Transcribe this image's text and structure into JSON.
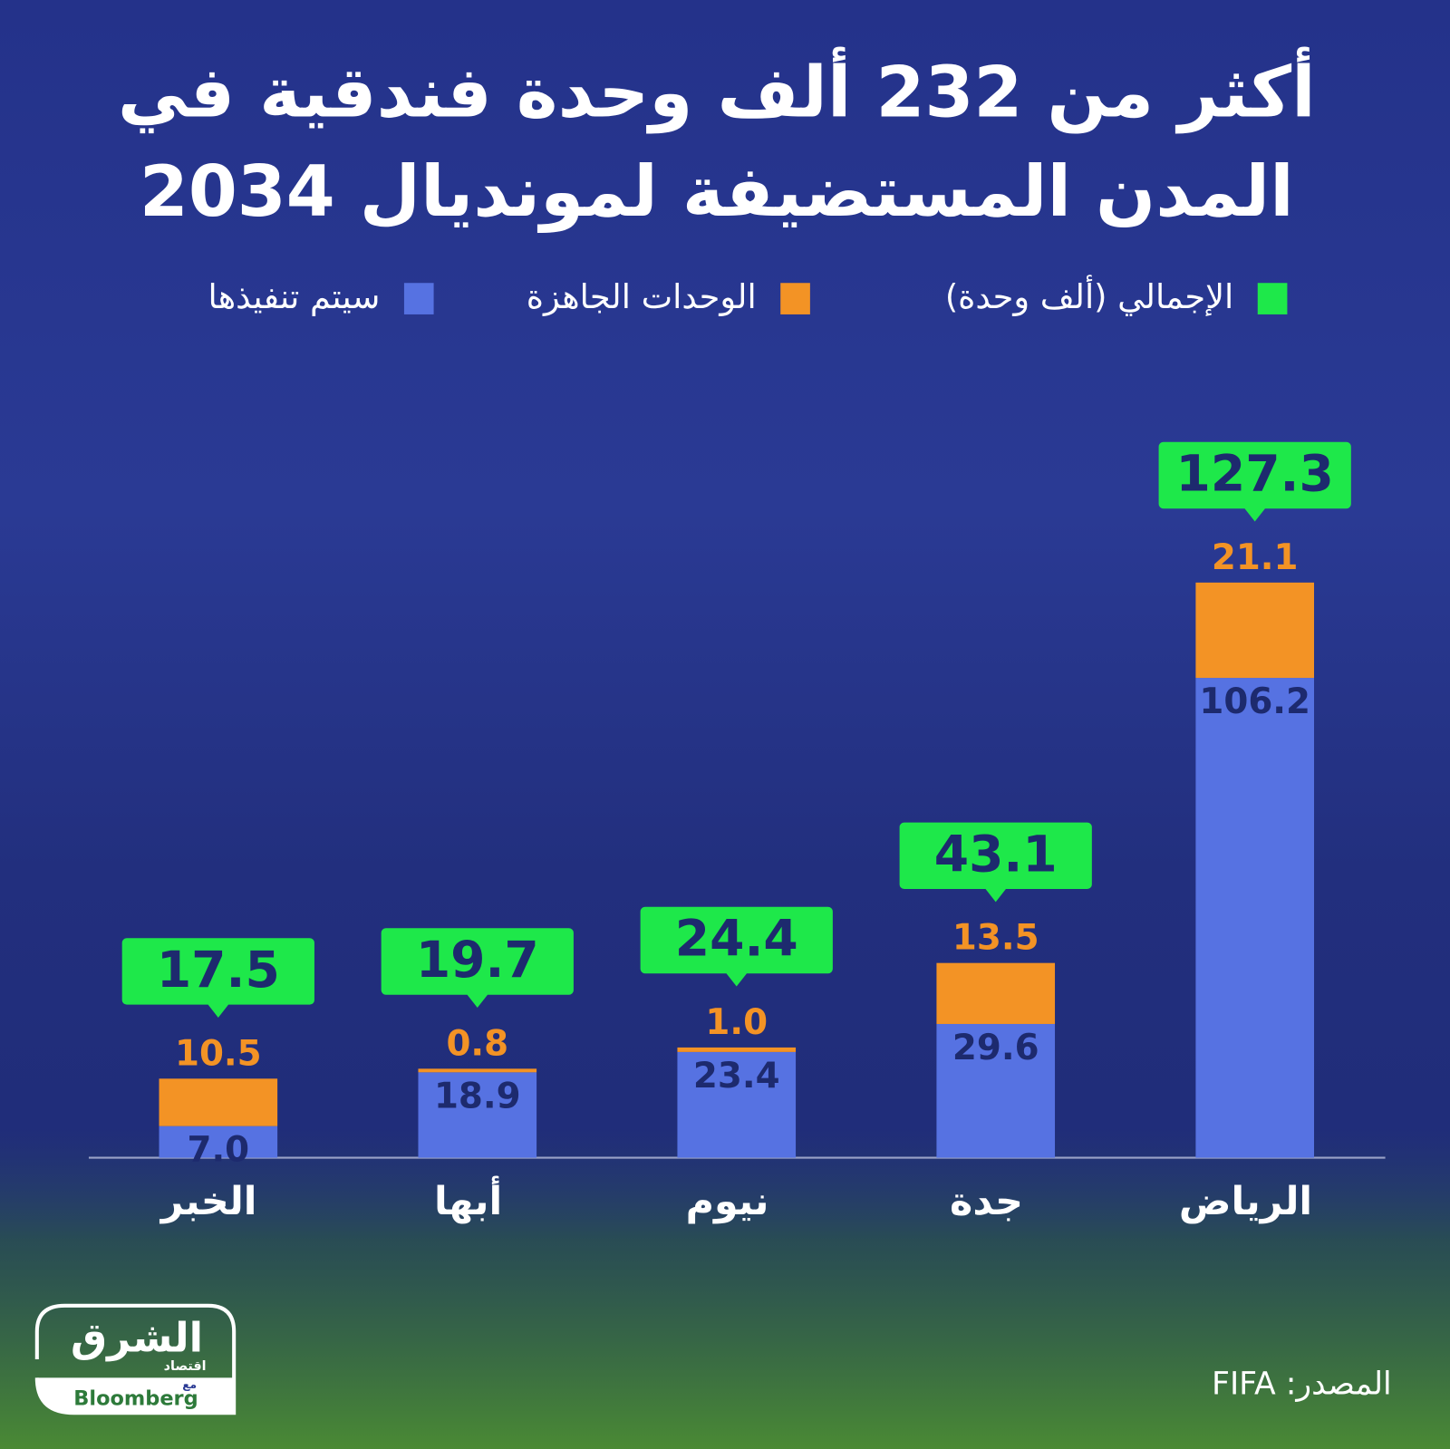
{
  "chart_data": {
    "type": "stacked-bar",
    "title": [
      "أكثر من 232 ألف وحدة فندقية في",
      "المدن المستضيفة لمونديال 2034"
    ],
    "categories": [
      "الخبر",
      "أبها",
      "نيوم",
      "جدة",
      "الرياض"
    ],
    "series": [
      {
        "name": "الإجمالي (ألف وحدة)",
        "color": "#1ee84a",
        "values": [
          17.5,
          19.7,
          24.4,
          43.1,
          127.3
        ]
      },
      {
        "name": "الوحدات الجاهزة",
        "color": "#f39325",
        "values": [
          10.5,
          0.8,
          1.0,
          13.5,
          21.1
        ],
        "value_labels": [
          "10.5",
          "0.8",
          "1.0",
          "13.5",
          "21.1"
        ]
      },
      {
        "name": "سيتم تنفيذها",
        "color": "#5672e2",
        "values": [
          7.0,
          18.9,
          23.4,
          29.6,
          106.2
        ],
        "value_labels": [
          "7.0",
          "18.9",
          "23.4",
          "29.6",
          "106.2"
        ]
      }
    ],
    "source": "المصدر: FIFA",
    "logo": {
      "name": "الشرق",
      "sub": "اقتصاد",
      "with": "مع",
      "partner": "Bloomberg"
    }
  }
}
